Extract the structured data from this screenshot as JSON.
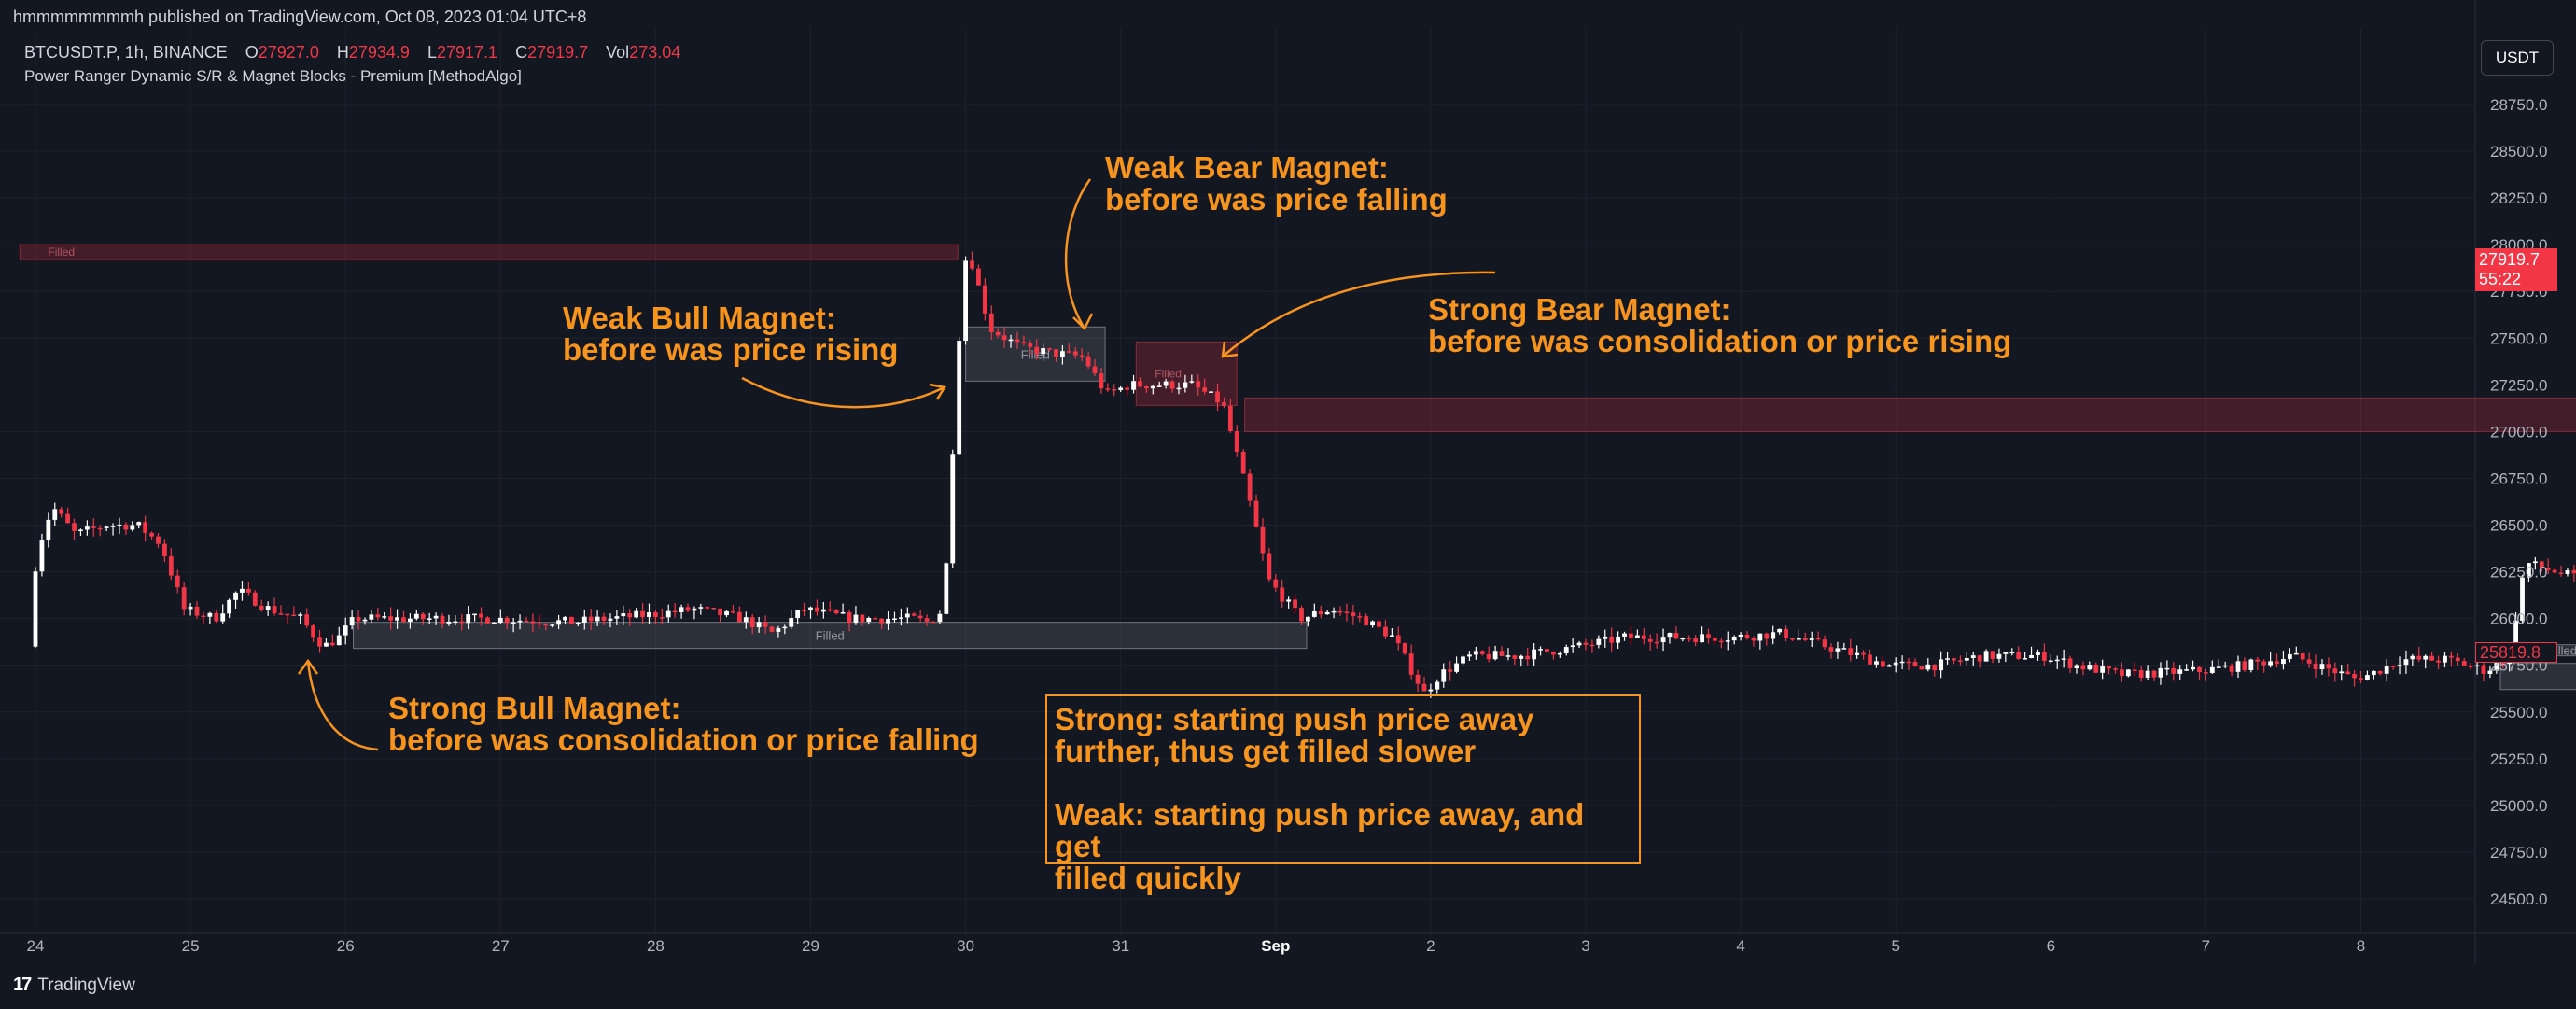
{
  "header": {
    "published": "hmmmmmmmmh published on TradingView.com, Oct 08, 2023 01:04 UTC+8",
    "symbol": "BTCUSDT.P, 1h, BINANCE",
    "o_label": "O",
    "o_value": "27927.0",
    "h_label": "H",
    "h_value": "27934.9",
    "l_label": "L",
    "l_value": "27917.1",
    "c_label": "C",
    "c_value": "27919.7",
    "vol_label": "Vol",
    "vol_value": "273.04",
    "indicator": "Power Ranger Dynamic S/R & Magnet Blocks - Premium [MethodAlgo]",
    "currency_button": "USDT"
  },
  "price_axis": {
    "ticks": [
      "28750.0",
      "28500.0",
      "28250.0",
      "28000.0",
      "27750.0",
      "27500.0",
      "27250.0",
      "27000.0",
      "26750.0",
      "26500.0",
      "26250.0",
      "26000.0",
      "25750.0",
      "25500.0",
      "25250.0",
      "25000.0",
      "24750.0",
      "24500.0"
    ],
    "current_price": "27919.7",
    "countdown": "55:22",
    "low_price_tag": "25819.8"
  },
  "time_axis": {
    "labels": [
      "24",
      "25",
      "26",
      "27",
      "28",
      "29",
      "30",
      "31",
      "Sep",
      "2",
      "3",
      "4",
      "5",
      "6",
      "7",
      "8"
    ]
  },
  "blocks": {
    "filled_label": "Filled"
  },
  "annotations": {
    "weak_bear_title": "Weak Bear Magnet:",
    "weak_bear_desc": "before was price falling",
    "weak_bull_title": "Weak Bull Magnet:",
    "weak_bull_desc": "before was price rising",
    "strong_bear_title": "Strong Bear Magnet:",
    "strong_bear_desc": "before was consolidation or price rising",
    "strong_bull_title": "Strong Bull Magnet:",
    "strong_bull_desc": "before was consolidation or price falling",
    "box_line1": "Strong: starting push price away",
    "box_line2": "further, thus get filled slower",
    "box_line3": "Weak: starting push price away, and get",
    "box_line4": "filled quickly"
  },
  "footer": {
    "brand": "TradingView"
  },
  "colors": {
    "background": "#131722",
    "bull_candle": "#ffffff",
    "bear_candle": "#f23645",
    "annotation": "#f7941d",
    "bear_block": "#5c1a22",
    "bull_block": "#3a3d46"
  },
  "chart_data": {
    "type": "candlestick",
    "y_range": [
      24400,
      28900
    ],
    "x_labels": [
      "24",
      "25",
      "26",
      "27",
      "28",
      "29",
      "30",
      "31",
      "Sep",
      "2",
      "3",
      "4",
      "5",
      "6",
      "7",
      "8"
    ],
    "path": [
      [
        24.0,
        25850
      ],
      [
        24.05,
        26350
      ],
      [
        24.15,
        26600
      ],
      [
        24.3,
        26450
      ],
      [
        24.5,
        26500
      ],
      [
        24.7,
        26500
      ],
      [
        24.85,
        26400
      ],
      [
        25.0,
        26050
      ],
      [
        25.2,
        26000
      ],
      [
        25.35,
        26150
      ],
      [
        25.55,
        26050
      ],
      [
        25.75,
        26000
      ],
      [
        25.9,
        25850
      ],
      [
        26.0,
        25900
      ],
      [
        26.1,
        26000
      ],
      [
        26.5,
        26000
      ],
      [
        27.0,
        26000
      ],
      [
        27.5,
        25980
      ],
      [
        28.0,
        26020
      ],
      [
        28.3,
        26050
      ],
      [
        28.6,
        26000
      ],
      [
        28.8,
        25920
      ],
      [
        29.0,
        26050
      ],
      [
        29.3,
        26000
      ],
      [
        29.7,
        26000
      ],
      [
        29.8,
        25980
      ],
      [
        29.9,
        26050
      ],
      [
        30.0,
        27500
      ],
      [
        30.05,
        28000
      ],
      [
        30.1,
        27850
      ],
      [
        30.2,
        27550
      ],
      [
        30.4,
        27450
      ],
      [
        30.6,
        27420
      ],
      [
        30.8,
        27400
      ],
      [
        30.95,
        27200
      ],
      [
        31.1,
        27250
      ],
      [
        31.3,
        27250
      ],
      [
        31.5,
        27250
      ],
      [
        31.7,
        27150
      ],
      [
        31.85,
        26700
      ],
      [
        32.0,
        26200
      ],
      [
        32.2,
        26000
      ],
      [
        32.4,
        26050
      ],
      [
        32.6,
        26000
      ],
      [
        32.8,
        25900
      ],
      [
        33.0,
        25600
      ],
      [
        33.1,
        25700
      ],
      [
        33.3,
        25800
      ],
      [
        33.6,
        25800
      ],
      [
        34.0,
        25850
      ],
      [
        34.3,
        25900
      ],
      [
        34.6,
        25900
      ],
      [
        35.0,
        25900
      ],
      [
        35.3,
        25920
      ],
      [
        35.6,
        25850
      ],
      [
        36.0,
        25750
      ],
      [
        36.3,
        25750
      ],
      [
        36.6,
        25800
      ],
      [
        37.0,
        25800
      ],
      [
        37.2,
        25750
      ],
      [
        37.5,
        25700
      ],
      [
        38.0,
        25720
      ],
      [
        38.3,
        25750
      ],
      [
        38.6,
        25800
      ],
      [
        39.0,
        25680
      ],
      [
        39.1,
        25700
      ],
      [
        39.3,
        25780
      ],
      [
        39.6,
        25780
      ],
      [
        39.85,
        25720
      ],
      [
        40.0,
        25800
      ],
      [
        40.1,
        26300
      ],
      [
        40.3,
        26250
      ],
      [
        40.5,
        26200
      ],
      [
        40.7,
        26100
      ],
      [
        40.75,
        25820
      ]
    ],
    "bear_blocks": [
      {
        "label": "Filled",
        "x0": 23.9,
        "x1": 29.95,
        "top": 28000,
        "bottom": 27920
      },
      {
        "label": "Filled",
        "x0": 31.1,
        "x1": 31.75,
        "top": 27480,
        "bottom": 27140
      },
      {
        "label": "",
        "x0": 31.8,
        "x1": 40.8,
        "top": 27180,
        "bottom": 27000
      }
    ],
    "bull_blocks": [
      {
        "label": "Filled",
        "x0": 26.05,
        "x1": 32.2,
        "top": 25980,
        "bottom": 25840
      },
      {
        "label": "Filled",
        "x0": 30.0,
        "x1": 30.9,
        "top": 27560,
        "bottom": 27270
      },
      {
        "label": "Filled",
        "x0": 39.9,
        "x1": 40.7,
        "top": 25860,
        "bottom": 25800
      },
      {
        "label": "",
        "x0": 39.9,
        "x1": 40.7,
        "top": 25760,
        "bottom": 25620
      }
    ]
  }
}
